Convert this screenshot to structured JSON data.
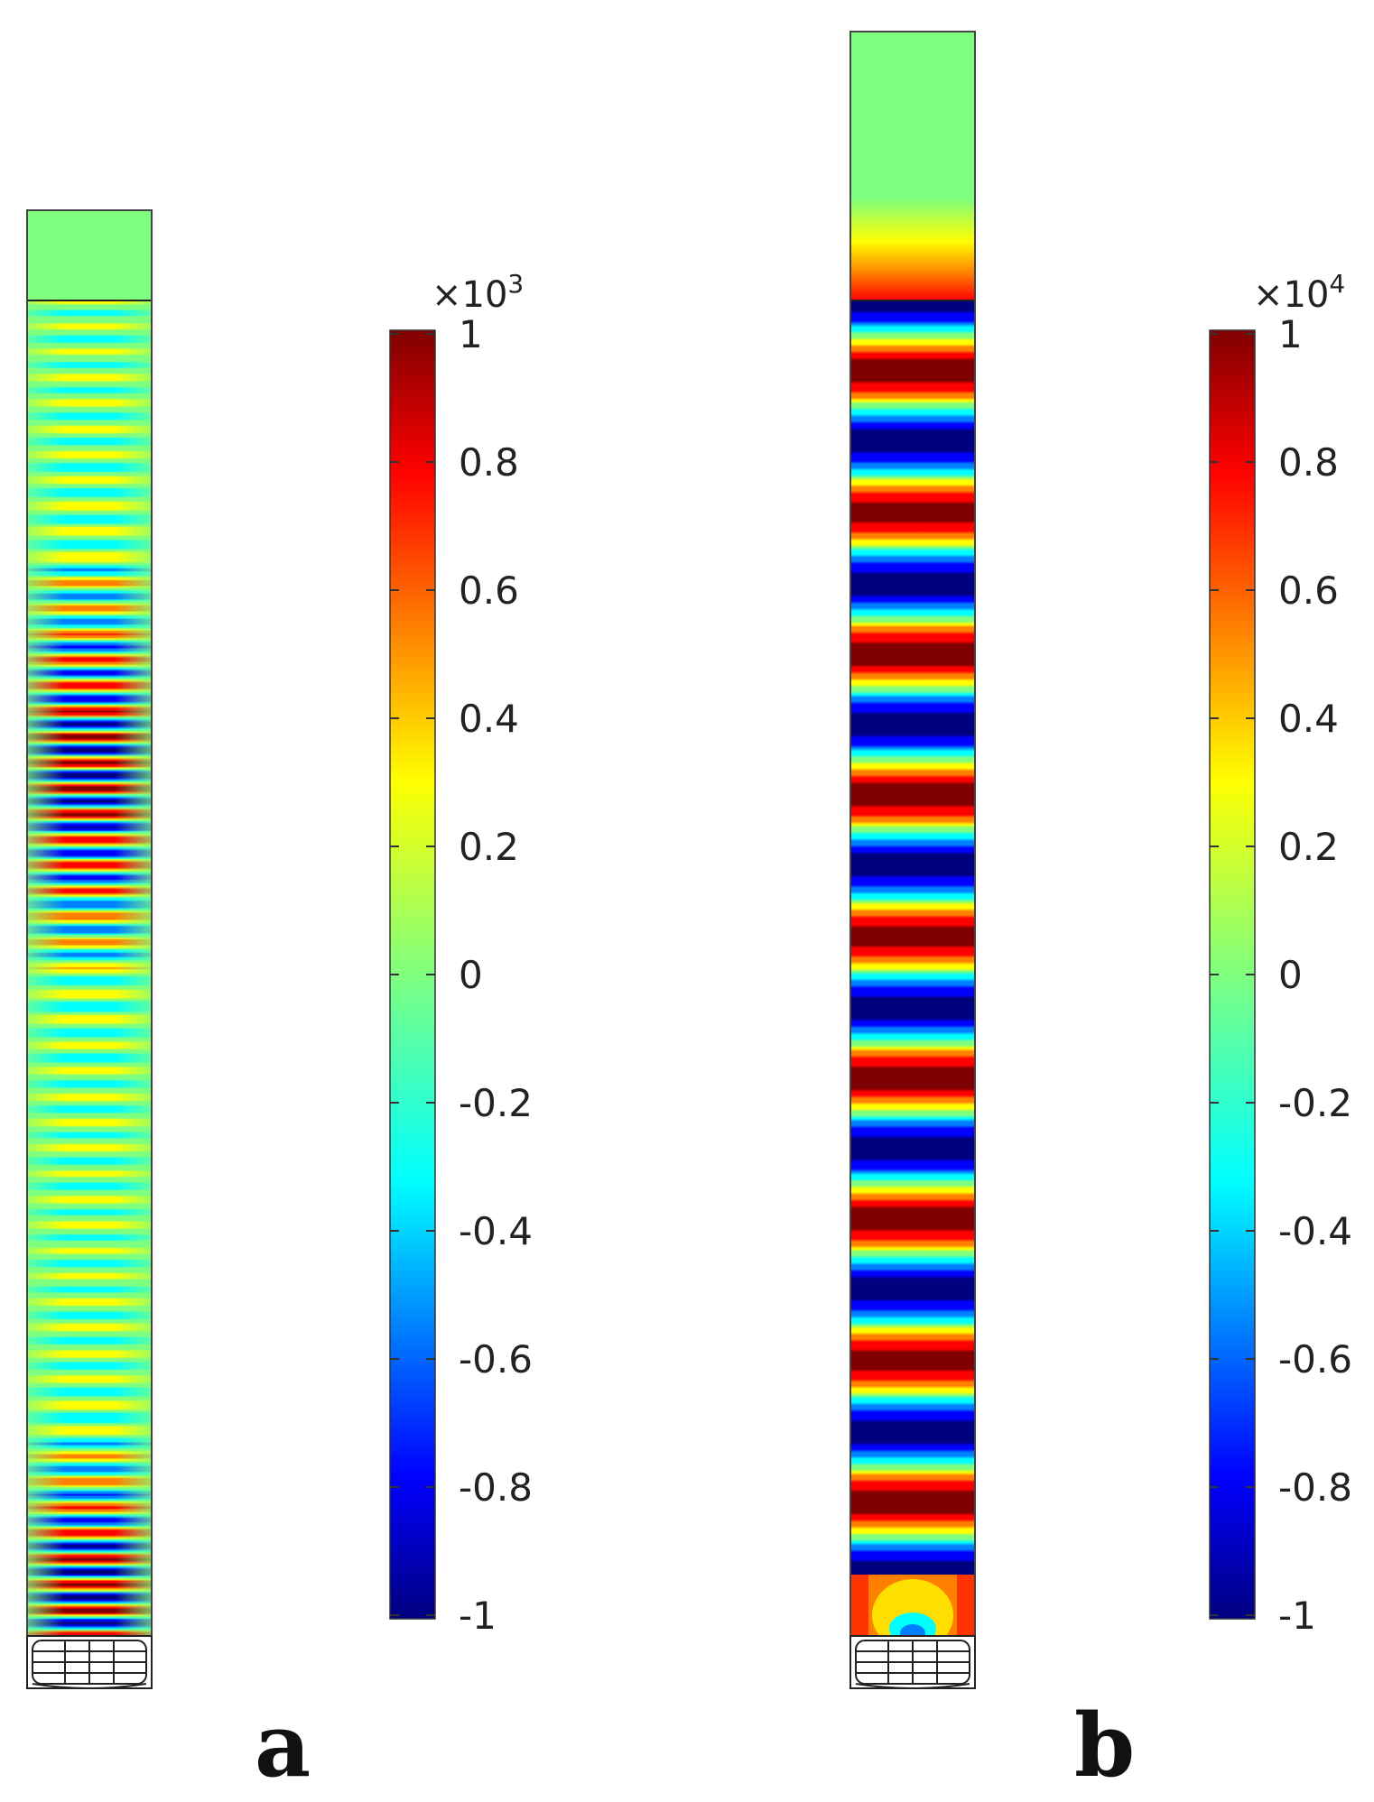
{
  "colormap": [
    "#00007f",
    "#0000ff",
    "#007fff",
    "#00ffff",
    "#7fff7f",
    "#ffff00",
    "#ff7f00",
    "#ff0000",
    "#7f0000"
  ],
  "panels": [
    {
      "id": "a",
      "letter": "a",
      "colorbar": {
        "multiplier_base": "×10",
        "multiplier_exp": "3",
        "ticks": [
          "1",
          "0.8",
          "0.6",
          "0.4",
          "0.2",
          "0",
          "-0.2",
          "-0.4",
          "-0.6",
          "-0.8",
          "-1"
        ]
      }
    },
    {
      "id": "b",
      "letter": "b",
      "colorbar": {
        "multiplier_base": "×10",
        "multiplier_exp": "4",
        "ticks": [
          "1",
          "0.8",
          "0.6",
          "0.4",
          "0.2",
          "0",
          "-0.2",
          "-0.4",
          "-0.6",
          "-0.8",
          "-1"
        ]
      }
    }
  ]
}
